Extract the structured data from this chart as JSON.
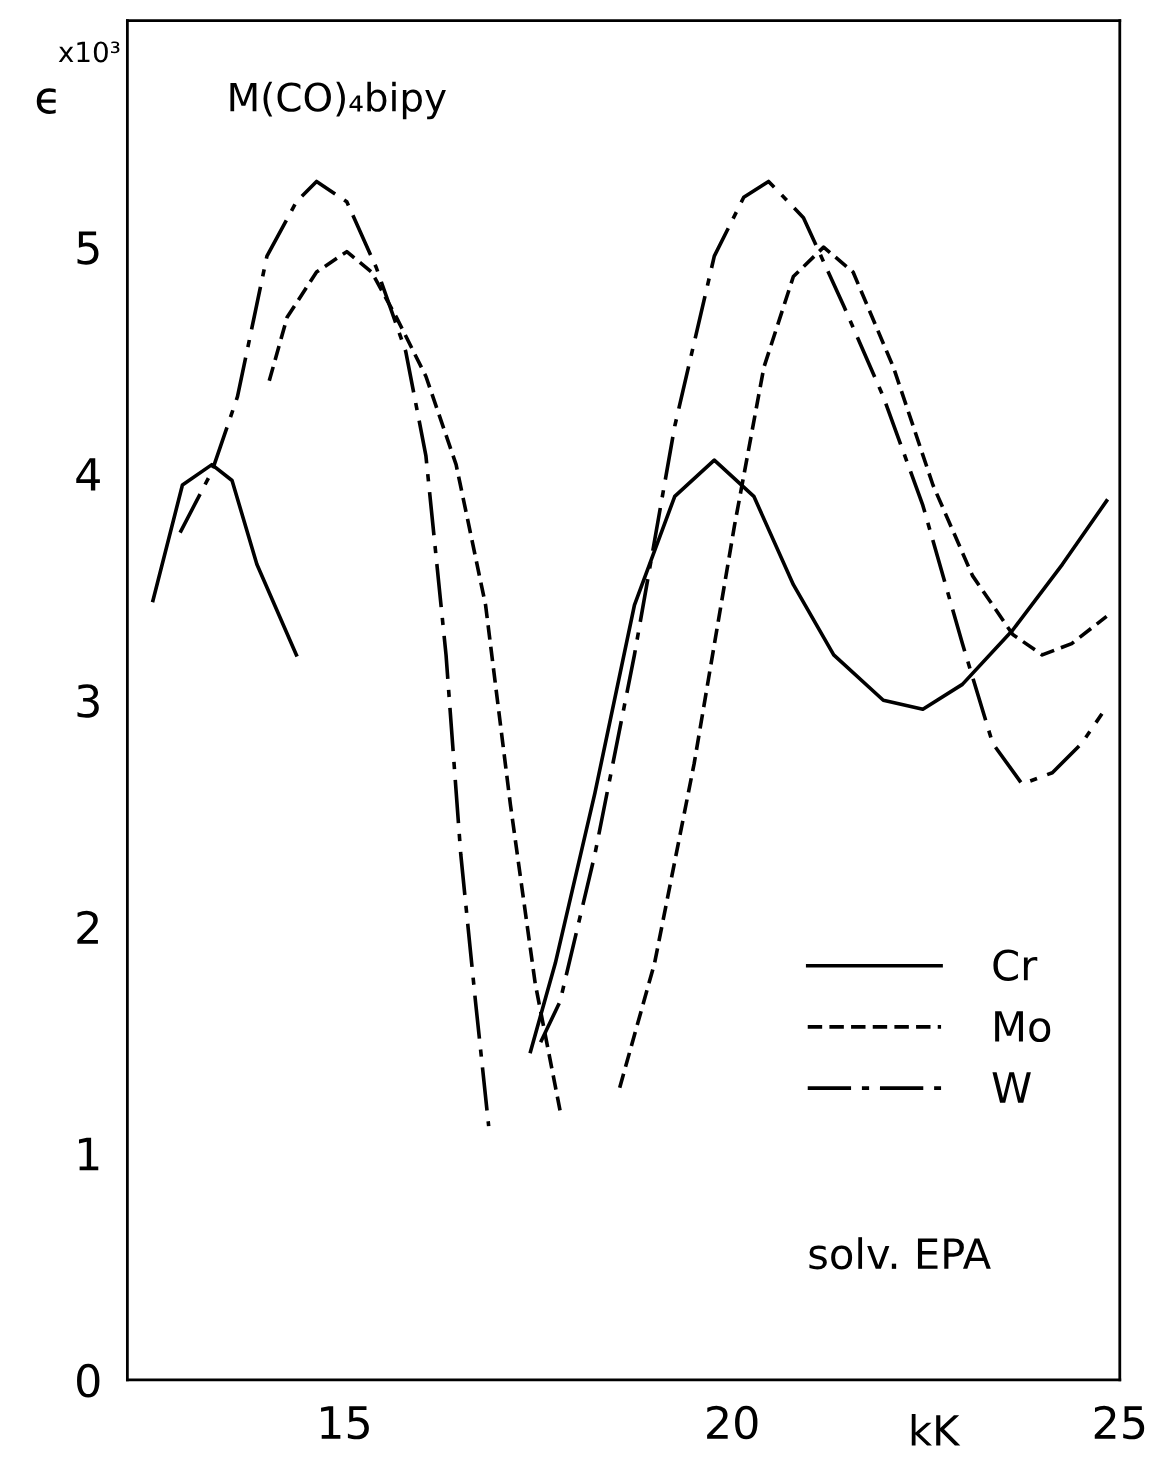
{
  "chart_data": {
    "type": "line",
    "title": "M(CO)₄bipy",
    "xlabel": "kK",
    "ylabel": "ϵ",
    "annotations": [
      "x10³",
      "solv. EPA"
    ],
    "xlim": [
      12.2,
      25
    ],
    "xticks": [
      15,
      20,
      25
    ],
    "ylim": [
      0,
      6
    ],
    "yticks": [
      0,
      1,
      2,
      3,
      4,
      5
    ],
    "grid": false,
    "legend": "bottom right",
    "marker": "none",
    "series": [
      {
        "name": "Cr",
        "color": "#000000",
        "line_style": "solid",
        "x": [
          12.53,
          12.91,
          13.29,
          13.55,
          13.87,
          14.38,
          16.0,
          17.4,
          17.72,
          18.23,
          18.74,
          19.26,
          19.77,
          20.28,
          20.79,
          21.31,
          21.95,
          22.46,
          22.97,
          23.62,
          24.26,
          24.83
        ],
        "values": [
          3.44,
          3.95,
          4.04,
          3.97,
          3.6,
          3.2,
          null,
          1.45,
          1.84,
          2.59,
          3.42,
          3.9,
          4.06,
          3.9,
          3.51,
          3.2,
          3.0,
          2.96,
          3.07,
          3.31,
          3.6,
          3.88
        ]
      },
      {
        "name": "Mo",
        "color": "#000000",
        "line_style": "dashed",
        "x": [
          14.03,
          14.26,
          14.64,
          15.03,
          15.35,
          15.67,
          16.05,
          16.44,
          16.82,
          17.14,
          17.46,
          17.78,
          18.2,
          18.55,
          19.0,
          19.51,
          20.03,
          20.41,
          20.79,
          21.18,
          21.56,
          22.08,
          22.59,
          23.1,
          23.62,
          24.0,
          24.38,
          24.83
        ],
        "values": [
          4.41,
          4.69,
          4.89,
          4.98,
          4.89,
          4.69,
          4.43,
          4.04,
          3.42,
          2.54,
          1.75,
          1.19,
          null,
          1.29,
          1.84,
          2.72,
          3.77,
          4.47,
          4.87,
          5.0,
          4.89,
          4.47,
          3.95,
          3.55,
          3.29,
          3.2,
          3.25,
          3.37
        ]
      },
      {
        "name": "W",
        "color": "#000000",
        "line_style": "dashdot",
        "x": [
          12.88,
          13.29,
          13.62,
          14.0,
          14.38,
          14.64,
          15.03,
          15.41,
          15.79,
          16.05,
          16.31,
          16.5,
          16.69,
          16.86,
          17.2,
          17.53,
          17.78,
          18.23,
          18.74,
          19.26,
          19.77,
          20.15,
          20.47,
          20.92,
          21.44,
          21.95,
          22.46,
          22.97,
          23.36,
          23.74,
          24.13,
          24.51,
          24.77
        ],
        "values": [
          3.74,
          4.01,
          4.34,
          4.96,
          5.2,
          5.29,
          5.2,
          4.91,
          4.54,
          4.08,
          3.2,
          2.32,
          1.67,
          1.12,
          null,
          1.49,
          1.67,
          2.32,
          3.2,
          4.21,
          4.96,
          5.22,
          5.29,
          5.13,
          4.74,
          4.34,
          3.86,
          3.25,
          2.81,
          2.63,
          2.68,
          2.81,
          2.94
        ]
      }
    ]
  }
}
